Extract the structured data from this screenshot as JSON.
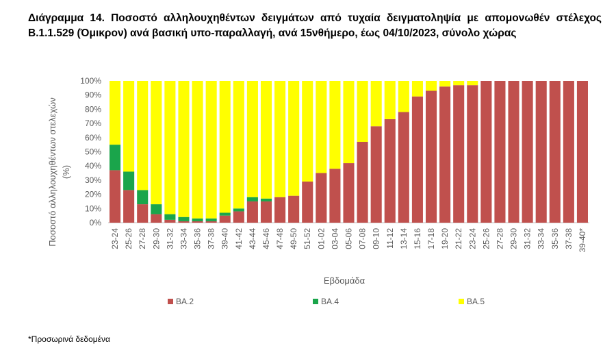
{
  "title": "Διάγραμμα 14. Ποσοστό αλληλουχηθέντων δειγμάτων από τυχαία δειγματοληψία με απομονωθέν στέλεχος Β.1.1.529 (Όμικρον) ανά βασική υπο-παραλλαγή, ανά 15νθήμερο, έως 04/10/2023, σύνολο χώρας",
  "footnote": "*Προσωρινά δεδομένα",
  "colors": {
    "BA.2": "#c0504d",
    "BA.4": "#1aa54b",
    "BA.5": "#ffff00",
    "axis": "#bfbfbf",
    "text": "#595959"
  },
  "chart_data": {
    "type": "bar",
    "stacked": true,
    "xlabel": "Εβδομάδα",
    "ylabel_line1": "Ποσοστό αλληλουχηθέντων στελεχών",
    "ylabel_line2": "(%)",
    "ylim": [
      0,
      100
    ],
    "yticks": [
      "0%",
      "10%",
      "20%",
      "30%",
      "40%",
      "50%",
      "60%",
      "70%",
      "80%",
      "90%",
      "100%"
    ],
    "legend_position": "bottom",
    "categories": [
      "23-24",
      "25-26",
      "27-28",
      "29-30",
      "31-32",
      "33-34",
      "35-36",
      "37-38",
      "39-40",
      "41-42",
      "43-44",
      "45-46",
      "47-48",
      "49-50",
      "51-52",
      "01-02",
      "03-04",
      "05-06",
      "07-08",
      "09-10",
      "11-12",
      "13-14",
      "15-16",
      "17-18",
      "19-20",
      "21-22",
      "23-24",
      "25-26",
      "27-28",
      "29-30",
      "31-32",
      "33-34",
      "35-36",
      "37-38",
      "39-40*"
    ],
    "series": [
      {
        "name": "BA.2",
        "values": [
          37,
          23,
          13,
          6,
          2,
          1,
          1,
          1,
          5,
          8,
          15,
          15,
          18,
          19,
          29,
          35,
          38,
          42,
          57,
          68,
          73,
          78,
          89,
          93,
          96,
          97,
          97,
          100,
          100,
          100,
          100,
          100,
          100,
          100,
          100
        ]
      },
      {
        "name": "BA.4",
        "values": [
          18,
          13,
          10,
          7,
          4,
          3,
          2,
          2,
          2,
          2,
          3,
          2,
          0,
          0,
          0,
          0,
          0,
          0,
          0,
          0,
          0,
          0,
          0,
          0,
          0,
          0,
          0,
          0,
          0,
          0,
          0,
          0,
          0,
          0,
          0
        ]
      },
      {
        "name": "BA.5",
        "values": [
          45,
          64,
          77,
          87,
          94,
          96,
          97,
          97,
          93,
          90,
          82,
          83,
          82,
          81,
          71,
          65,
          62,
          58,
          43,
          32,
          27,
          22,
          11,
          7,
          4,
          3,
          3,
          0,
          0,
          0,
          0,
          0,
          0,
          0,
          0
        ]
      }
    ]
  }
}
